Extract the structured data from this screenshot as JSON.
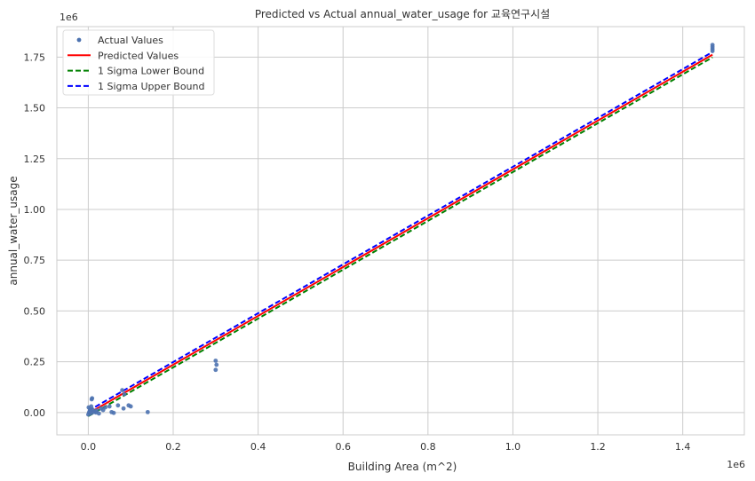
{
  "chart_data": {
    "type": "scatter",
    "title": "Predicted vs Actual annual_water_usage for 교육연구시설",
    "xlabel": "Building Area (m^2)",
    "ylabel": "annual_water_usage",
    "x_offset_label": "1e6",
    "y_offset_label": "1e6",
    "xlim": [
      -0.074,
      1.545
    ],
    "ylim": [
      -0.11,
      1.9
    ],
    "x_ticks": [
      0.0,
      0.2,
      0.4,
      0.6,
      0.8,
      1.0,
      1.2,
      1.4
    ],
    "x_tick_labels": [
      "0.0",
      "0.2",
      "0.4",
      "0.6",
      "0.8",
      "1.0",
      "1.2",
      "1.4"
    ],
    "y_ticks": [
      0.0,
      0.25,
      0.5,
      0.75,
      1.0,
      1.25,
      1.5,
      1.75
    ],
    "y_tick_labels": [
      "0.00",
      "0.25",
      "0.50",
      "0.75",
      "1.00",
      "1.25",
      "1.50",
      "1.75"
    ],
    "grid": true,
    "legend_position": "top-left",
    "series": [
      {
        "name": "Actual Values",
        "kind": "scatter",
        "color": "#4C72B0",
        "points": [
          [
            0.0,
            -0.01
          ],
          [
            0.001,
            0.025
          ],
          [
            0.002,
            0.0
          ],
          [
            0.003,
            0.005
          ],
          [
            0.004,
            0.015
          ],
          [
            0.005,
            0.01
          ],
          [
            0.006,
            -0.005
          ],
          [
            0.007,
            0.03
          ],
          [
            0.008,
            0.065
          ],
          [
            0.009,
            0.07
          ],
          [
            0.01,
            0.015
          ],
          [
            0.012,
            0.002
          ],
          [
            0.015,
            0.005
          ],
          [
            0.018,
            0.0
          ],
          [
            0.02,
            0.01
          ],
          [
            0.025,
            -0.005
          ],
          [
            0.03,
            0.02
          ],
          [
            0.035,
            0.012
          ],
          [
            0.04,
            0.025
          ],
          [
            0.05,
            0.03
          ],
          [
            0.055,
            0.002
          ],
          [
            0.06,
            -0.002
          ],
          [
            0.07,
            0.035
          ],
          [
            0.08,
            0.11
          ],
          [
            0.083,
            0.02
          ],
          [
            0.085,
            0.09
          ],
          [
            0.095,
            0.035
          ],
          [
            0.1,
            0.03
          ],
          [
            0.14,
            0.002
          ],
          [
            0.3,
            0.255
          ],
          [
            0.302,
            0.235
          ],
          [
            0.3,
            0.21
          ],
          [
            1.47,
            1.78
          ],
          [
            1.47,
            1.79
          ],
          [
            1.47,
            1.8
          ],
          [
            1.47,
            1.81
          ]
        ]
      },
      {
        "name": "Predicted Values",
        "kind": "line",
        "style": "solid",
        "color": "#ff0000",
        "x": [
          0.0,
          1.47
        ],
        "y": [
          -0.005,
          1.762
        ]
      },
      {
        "name": "1 Sigma Lower Bound",
        "kind": "line",
        "style": "dashed",
        "color": "#008000",
        "x": [
          0.0,
          1.47
        ],
        "y": [
          -0.018,
          1.749
        ]
      },
      {
        "name": "1 Sigma Upper Bound",
        "kind": "line",
        "style": "dashed",
        "color": "#0000ff",
        "x": [
          0.0,
          1.47
        ],
        "y": [
          0.008,
          1.775
        ]
      }
    ]
  }
}
